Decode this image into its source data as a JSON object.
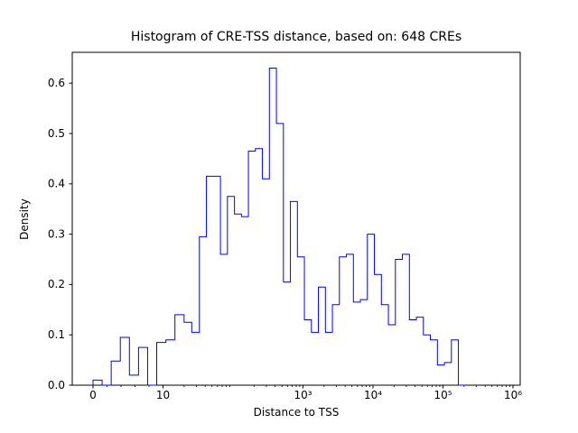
{
  "figure": {
    "title": "Histogram of CRE-TSS distance, based on: 648 CREs",
    "xlabel": "Distance to TSS",
    "ylabel": "Density"
  },
  "chart_data": {
    "type": "bar",
    "subtype": "step-histogram",
    "title": "Histogram of CRE-TSS distance, based on: 648 CREs",
    "xlabel": "Distance to TSS",
    "ylabel": "Density",
    "n_samples": 648,
    "line_color": "#0000ff",
    "axis_color": "#000000",
    "background_color": "#ffffff",
    "x_scale": "symlog",
    "x_linthresh": 10,
    "xlim_units": [
      -0.3,
      6.1
    ],
    "ylim": [
      0,
      0.661
    ],
    "grid": false,
    "legend": "none",
    "bin_edges": [
      0,
      1.3,
      2.6,
      3.9,
      5.2,
      6.5,
      7.8,
      9.1,
      11,
      14.8,
      20,
      25.7,
      33.1,
      41.7,
      52.5,
      66.1,
      83.2,
      105,
      132,
      166,
      209,
      263,
      331,
      417,
      525,
      661,
      832,
      1047,
      1318,
      1660,
      2089,
      2630,
      3311,
      4169,
      5248,
      6607,
      8318,
      10471,
      13183,
      16596,
      20893,
      26303,
      33113,
      41687,
      52481,
      66069,
      83176,
      104713,
      131826,
      165959,
      208930
    ],
    "densities": [
      0.01,
      0,
      0.048,
      0.095,
      0.02,
      0.075,
      0,
      0.085,
      0.09,
      0.14,
      0.125,
      0.105,
      0.295,
      0.415,
      0.415,
      0.26,
      0.375,
      0.34,
      0.335,
      0.465,
      0.47,
      0.41,
      0.63,
      0.52,
      0.205,
      0.365,
      0.255,
      0.13,
      0.105,
      0.195,
      0.105,
      0.16,
      0.255,
      0.26,
      0.165,
      0.17,
      0.3,
      0.22,
      0.16,
      0.12,
      0.25,
      0.26,
      0.13,
      0.135,
      0.1,
      0.09,
      0.04,
      0.045,
      0.09,
      0
    ],
    "xticks": [
      {
        "value": 0,
        "label": "0"
      },
      {
        "value": 10,
        "label": "10"
      },
      {
        "value": 1000,
        "label": "10³"
      },
      {
        "value": 10000,
        "label": "10⁴"
      },
      {
        "value": 100000,
        "label": "10⁵"
      },
      {
        "value": 1000000,
        "label": "10⁶"
      }
    ],
    "yticks": [
      {
        "value": 0.0,
        "label": "0.0"
      },
      {
        "value": 0.1,
        "label": "0.1"
      },
      {
        "value": 0.2,
        "label": "0.2"
      },
      {
        "value": 0.3,
        "label": "0.3"
      },
      {
        "value": 0.4,
        "label": "0.4"
      },
      {
        "value": 0.5,
        "label": "0.5"
      },
      {
        "value": 0.6,
        "label": "0.6"
      }
    ]
  }
}
